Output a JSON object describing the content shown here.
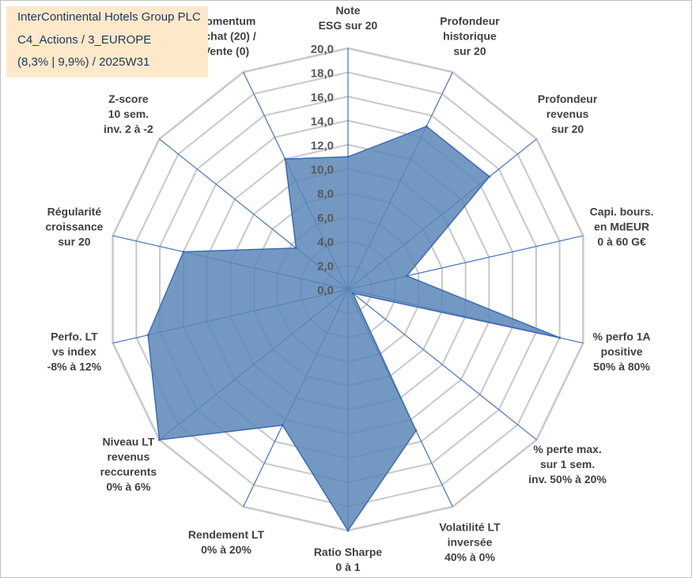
{
  "header": {
    "line1": "InterContinental Hotels Group PLC",
    "line2": "C4_Actions / 3_EUROPE",
    "line3": "(8,3% | 9,9%) / 2025W31"
  },
  "colors": {
    "fill": "#5b87b8",
    "stroke": "#3b6ab3",
    "grid": "#c8c8c8",
    "spoke": "#4472c4",
    "title_bg": "#fde9c9",
    "title_text": "#1f3864"
  },
  "chart_data": {
    "type": "radar",
    "title": "",
    "rmin": 0,
    "rmax": 20,
    "tick_step": 2,
    "tick_labels": [
      "0,0",
      "2,0",
      "4,0",
      "6,0",
      "8,0",
      "10,0",
      "12,0",
      "14,0",
      "16,0",
      "18,0",
      "20,0"
    ],
    "axes": [
      {
        "label": [
          "Note",
          "ESG sur 20"
        ],
        "value": 11.0
      },
      {
        "label": [
          "Profondeur",
          "historique",
          "sur 20"
        ],
        "value": 15.0
      },
      {
        "label": [
          "Profondeur",
          "revenus",
          "sur 20"
        ],
        "value": 15.0
      },
      {
        "label": [
          "Capi. bours.",
          "en MdEUR",
          "0 à 60 G€"
        ],
        "value": 5.0
      },
      {
        "label": [
          "% perfo 1A",
          "positive",
          "50% à 80%"
        ],
        "value": 18.0
      },
      {
        "label": [
          "% perte max.",
          "sur 1 sem.",
          "inv. 50% à 20%"
        ],
        "value": 0.5
      },
      {
        "label": [
          "Volatilité LT",
          "inversée",
          "40% à 0%"
        ],
        "value": 13.0
      },
      {
        "label": [
          "Ratio Sharpe",
          "0 à 1"
        ],
        "value": 20.0
      },
      {
        "label": [
          "Rendement LT",
          "0% à 20%"
        ],
        "value": 12.5
      },
      {
        "label": [
          "Niveau LT",
          "revenus",
          "reccurents",
          "0% à 6%"
        ],
        "value": 20.0
      },
      {
        "label": [
          "Perfo. LT",
          "vs index",
          "-8% à 12%"
        ],
        "value": 17.0
      },
      {
        "label": [
          "Régularité",
          "croissance",
          "sur 20"
        ],
        "value": 14.0
      },
      {
        "label": [
          "Z-score",
          "10 sem.",
          "inv. 2 à -2"
        ],
        "value": 5.5
      },
      {
        "label": [
          "Momentum",
          "Achat (20) /",
          "Vente (0)"
        ],
        "value": 12.0
      }
    ]
  }
}
